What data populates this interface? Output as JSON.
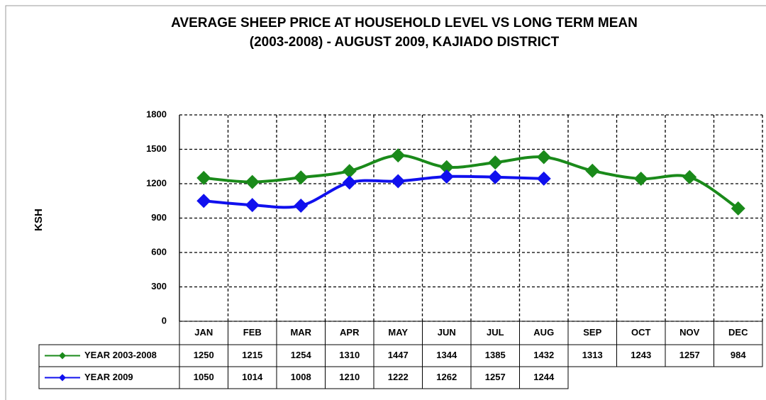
{
  "chart_data": {
    "type": "line",
    "title": [
      "AVERAGE SHEEP PRICE AT HOUSEHOLD LEVEL VS LONG TERM MEAN",
      "(2003-2008) - AUGUST 2009, KAJIADO DISTRICT"
    ],
    "y_label": "KSH",
    "categories": [
      "JAN",
      "FEB",
      "MAR",
      "APR",
      "MAY",
      "JUN",
      "JUL",
      "AUG",
      "SEP",
      "OCT",
      "NOV",
      "DEC"
    ],
    "series": [
      {
        "name": "YEAR 2003-2008",
        "color": "#1a8a1a",
        "values": [
          1250,
          1215,
          1254,
          1310,
          1447,
          1344,
          1385,
          1432,
          1313,
          1243,
          1257,
          984
        ]
      },
      {
        "name": "YEAR 2009",
        "color": "#1010ee",
        "values": [
          1050,
          1014,
          1008,
          1210,
          1222,
          1262,
          1257,
          1244,
          null,
          null,
          null,
          null
        ]
      }
    ],
    "ylim": [
      0,
      1800
    ],
    "yticks": [
      0,
      300,
      600,
      900,
      1200,
      1500,
      1800
    ],
    "grid": true
  }
}
